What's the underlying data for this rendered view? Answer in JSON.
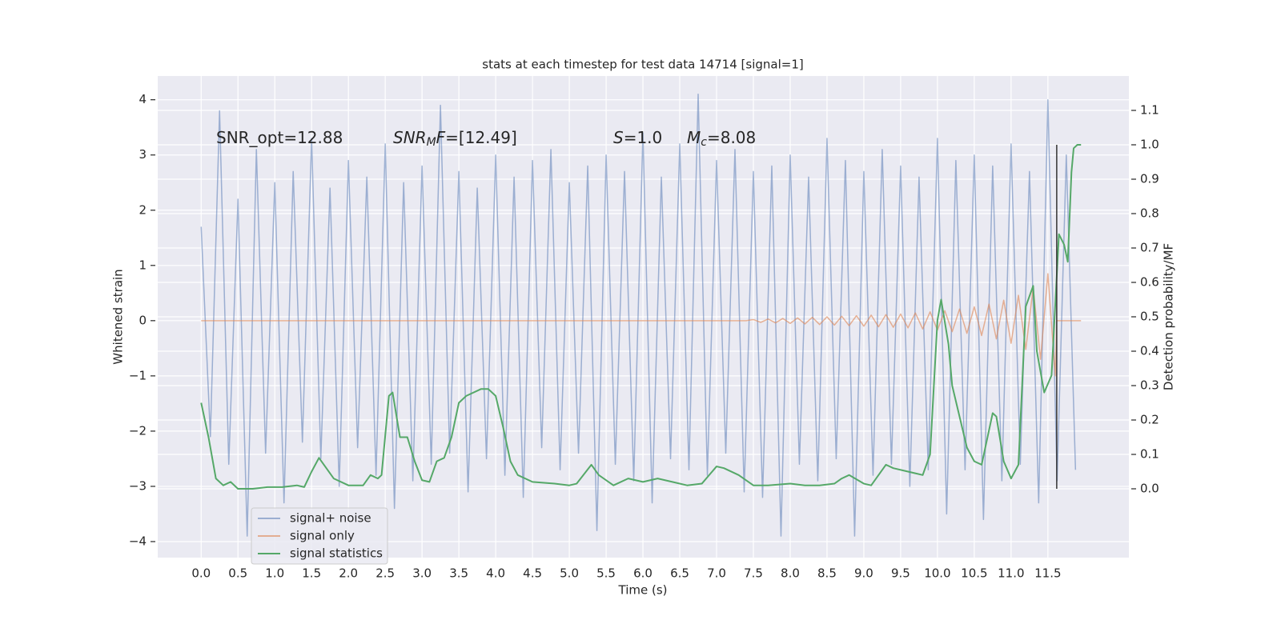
{
  "chart_data": {
    "type": "line",
    "title": "stats at each timestep for test data 14714 [signal=1]",
    "xlabel": "Time (s)",
    "ylabel": "Whitened strain",
    "y2label": "Detection probability/MF",
    "xlim": [
      -0.59,
      12.6
    ],
    "ylim": [
      -4.29,
      4.43
    ],
    "y2lim": [
      -0.2,
      1.2
    ],
    "xticks": [
      {
        "value": 0,
        "label": "0.0"
      },
      {
        "value": 0.5,
        "label": "0.5"
      },
      {
        "value": 1,
        "label": "1.0"
      },
      {
        "value": 1.5,
        "label": "1.5"
      },
      {
        "value": 2,
        "label": "2.0"
      },
      {
        "value": 2.5,
        "label": "2.5"
      },
      {
        "value": 3,
        "label": "3.0"
      },
      {
        "value": 3.5,
        "label": "3.5"
      },
      {
        "value": 4,
        "label": "4.0"
      },
      {
        "value": 4.5,
        "label": "4.5"
      },
      {
        "value": 5,
        "label": "5.0"
      },
      {
        "value": 5.5,
        "label": "5.5"
      },
      {
        "value": 6,
        "label": "6.0"
      },
      {
        "value": 6.5,
        "label": "6.5"
      },
      {
        "value": 7,
        "label": "7.0"
      },
      {
        "value": 7.5,
        "label": "7.5"
      },
      {
        "value": 8,
        "label": "8.0"
      },
      {
        "value": 8.5,
        "label": "8.5"
      },
      {
        "value": 9,
        "label": "9.0"
      },
      {
        "value": 9.5,
        "label": "9.5"
      },
      {
        "value": 10,
        "label": "10.0"
      },
      {
        "value": 10.5,
        "label": "10.5"
      },
      {
        "value": 11,
        "label": "11.0"
      },
      {
        "value": 11.5,
        "label": "11.5"
      }
    ],
    "yticks": [
      {
        "value": -4,
        "label": "−4"
      },
      {
        "value": -3,
        "label": "−3"
      },
      {
        "value": -2,
        "label": "−2"
      },
      {
        "value": -1,
        "label": "−1"
      },
      0,
      1,
      2,
      3,
      4
    ],
    "y2ticks": [
      {
        "value": 0,
        "label": "0.0"
      },
      {
        "value": 0.1,
        "label": "0.1"
      },
      {
        "value": 0.2,
        "label": "0.2"
      },
      {
        "value": 0.3,
        "label": "0.3"
      },
      {
        "value": 0.4,
        "label": "0.4"
      },
      {
        "value": 0.5,
        "label": "0.5"
      },
      {
        "value": 0.6,
        "label": "0.6"
      },
      {
        "value": 0.7,
        "label": "0.7"
      },
      {
        "value": 0.8,
        "label": "0.8"
      },
      {
        "value": 0.9,
        "label": "0.9"
      },
      {
        "value": 1,
        "label": "1.0"
      },
      {
        "value": 1.1,
        "label": "1.1"
      }
    ],
    "grid": true,
    "legend": "lower left",
    "vline_x": 11.62,
    "annotations": [
      [
        {
          "text": "SNR_opt=12.88"
        }
      ],
      [
        {
          "text": "SNR",
          "italic": true
        },
        {
          "text": "M",
          "italic": true,
          "sub": true
        },
        {
          "text": "F",
          "italic": true
        },
        {
          "text": "=[12.49]"
        }
      ],
      [
        {
          "text": "S",
          "italic": true
        },
        {
          "text": "=1.0"
        }
      ],
      [
        {
          "text": "M",
          "italic": true
        },
        {
          "text": "c",
          "italic": true,
          "sub": true
        },
        {
          "text": "=8.08"
        }
      ]
    ],
    "series": [
      {
        "name": "signal+ noise",
        "color": "#4c72b0",
        "opacity": 0.5,
        "x": [
          0,
          0.125,
          0.25,
          0.375,
          0.5,
          0.625,
          0.75,
          0.875,
          1,
          1.125,
          1.25,
          1.375,
          1.5,
          1.625,
          1.75,
          1.875,
          2,
          2.125,
          2.25,
          2.375,
          2.5,
          2.625,
          2.75,
          2.875,
          3,
          3.125,
          3.25,
          3.375,
          3.5,
          3.625,
          3.75,
          3.875,
          4,
          4.125,
          4.25,
          4.375,
          4.5,
          4.625,
          4.75,
          4.875,
          5,
          5.125,
          5.25,
          5.375,
          5.5,
          5.625,
          5.75,
          5.875,
          6,
          6.125,
          6.25,
          6.375,
          6.5,
          6.625,
          6.75,
          6.875,
          7,
          7.125,
          7.25,
          7.375,
          7.5,
          7.625,
          7.75,
          7.875,
          8,
          8.125,
          8.25,
          8.375,
          8.5,
          8.625,
          8.75,
          8.875,
          9,
          9.125,
          9.25,
          9.375,
          9.5,
          9.625,
          9.75,
          9.875,
          10,
          10.125,
          10.25,
          10.375,
          10.5,
          10.625,
          10.75,
          10.875,
          11,
          11.125,
          11.25,
          11.375,
          11.5,
          11.625,
          11.75,
          11.875
        ],
        "values": [
          1.7,
          -2.1,
          3.8,
          -2.6,
          2.2,
          -3.9,
          3.1,
          -2.4,
          2.5,
          -3.3,
          2.7,
          -2.2,
          3.3,
          -2.5,
          2.4,
          -3.0,
          2.9,
          -2.3,
          2.6,
          -2.8,
          3.2,
          -3.4,
          2.5,
          -2.9,
          2.8,
          -2.6,
          3.9,
          -2.4,
          2.7,
          -3.1,
          2.4,
          -2.5,
          3.0,
          -2.8,
          2.6,
          -3.2,
          2.9,
          -2.3,
          3.1,
          -2.7,
          2.5,
          -2.4,
          2.8,
          -3.8,
          3.0,
          -2.6,
          2.7,
          -2.9,
          3.4,
          -3.3,
          2.6,
          -2.5,
          3.2,
          -2.7,
          4.1,
          -2.8,
          2.9,
          -2.4,
          3.1,
          -3.1,
          2.7,
          -3.2,
          2.8,
          -3.9,
          3.0,
          -2.6,
          2.6,
          -2.9,
          3.3,
          -2.5,
          2.9,
          -3.9,
          2.7,
          -2.8,
          3.1,
          -2.6,
          2.8,
          -3.0,
          2.6,
          -2.7,
          3.3,
          -3.5,
          2.9,
          -2.7,
          3.0,
          -3.6,
          2.8,
          -2.9,
          3.2,
          -2.6,
          2.7,
          -3.3,
          4.0,
          -2.9,
          3.0,
          -2.7
        ]
      },
      {
        "name": "signal only",
        "color": "#dd8452",
        "opacity": 0.6,
        "x": [
          0,
          7.4,
          7.5,
          7.6,
          7.7,
          7.8,
          7.9,
          8.0,
          8.1,
          8.2,
          8.3,
          8.4,
          8.5,
          8.6,
          8.7,
          8.8,
          8.9,
          9.0,
          9.1,
          9.2,
          9.3,
          9.4,
          9.5,
          9.6,
          9.7,
          9.8,
          9.9,
          10.0,
          10.1,
          10.2,
          10.3,
          10.4,
          10.5,
          10.6,
          10.7,
          10.8,
          10.9,
          11.0,
          11.1,
          11.2,
          11.3,
          11.4,
          11.5,
          11.6,
          11.62,
          11.95
        ],
        "values": [
          0,
          0,
          0.02,
          -0.03,
          0.03,
          -0.04,
          0.04,
          -0.05,
          0.05,
          -0.06,
          0.06,
          -0.07,
          0.07,
          -0.08,
          0.08,
          -0.09,
          0.09,
          -0.1,
          0.1,
          -0.11,
          0.11,
          -0.12,
          0.12,
          -0.13,
          0.14,
          -0.15,
          0.16,
          -0.17,
          0.18,
          -0.2,
          0.21,
          -0.23,
          0.25,
          -0.27,
          0.3,
          -0.33,
          0.37,
          -0.41,
          0.46,
          -0.52,
          0.6,
          -0.7,
          0.85,
          -1.0,
          0,
          0
        ]
      },
      {
        "name": "signal statistics",
        "color": "#55a868",
        "axis": "y2",
        "opacity": 1,
        "x": [
          0,
          0.1,
          0.2,
          0.3,
          0.4,
          0.5,
          0.7,
          0.9,
          1.1,
          1.3,
          1.4,
          1.5,
          1.6,
          1.7,
          1.8,
          2.0,
          2.2,
          2.3,
          2.4,
          2.45,
          2.55,
          2.6,
          2.7,
          2.8,
          2.9,
          3.0,
          3.1,
          3.2,
          3.3,
          3.4,
          3.5,
          3.6,
          3.8,
          3.9,
          4.0,
          4.1,
          4.2,
          4.3,
          4.5,
          4.8,
          5.0,
          5.1,
          5.3,
          5.4,
          5.6,
          5.8,
          6.0,
          6.2,
          6.4,
          6.6,
          6.8,
          7.0,
          7.1,
          7.3,
          7.5,
          7.7,
          8.0,
          8.2,
          8.4,
          8.6,
          8.7,
          8.8,
          9.0,
          9.1,
          9.3,
          9.4,
          9.6,
          9.8,
          9.9,
          10.0,
          10.05,
          10.15,
          10.2,
          10.4,
          10.5,
          10.6,
          10.75,
          10.8,
          10.9,
          11.0,
          11.1,
          11.2,
          11.3,
          11.35,
          11.45,
          11.55,
          11.65,
          11.72,
          11.77,
          11.82,
          11.85,
          11.9,
          11.95
        ],
        "values": [
          0.25,
          0.15,
          0.03,
          0.01,
          0.02,
          0.0,
          0.0,
          0.005,
          0.005,
          0.01,
          0.005,
          0.05,
          0.09,
          0.06,
          0.03,
          0.01,
          0.01,
          0.04,
          0.03,
          0.04,
          0.27,
          0.28,
          0.15,
          0.15,
          0.08,
          0.025,
          0.02,
          0.08,
          0.09,
          0.15,
          0.25,
          0.27,
          0.29,
          0.29,
          0.27,
          0.18,
          0.08,
          0.04,
          0.02,
          0.015,
          0.01,
          0.015,
          0.07,
          0.04,
          0.01,
          0.03,
          0.02,
          0.03,
          0.02,
          0.01,
          0.015,
          0.065,
          0.06,
          0.04,
          0.01,
          0.01,
          0.015,
          0.01,
          0.01,
          0.015,
          0.03,
          0.04,
          0.015,
          0.01,
          0.07,
          0.06,
          0.05,
          0.04,
          0.1,
          0.49,
          0.55,
          0.42,
          0.3,
          0.12,
          0.08,
          0.07,
          0.22,
          0.21,
          0.08,
          0.03,
          0.07,
          0.53,
          0.59,
          0.4,
          0.28,
          0.33,
          0.74,
          0.71,
          0.66,
          0.92,
          0.99,
          1.0,
          1.0
        ]
      }
    ]
  }
}
